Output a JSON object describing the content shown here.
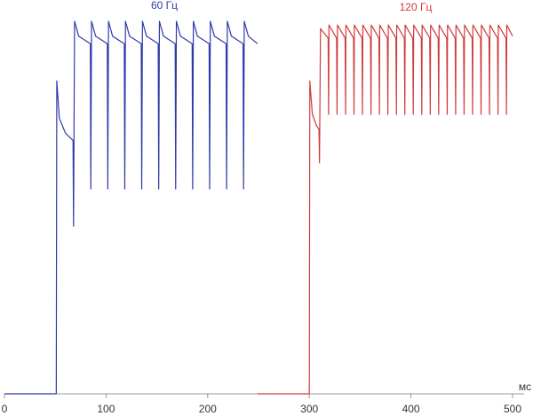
{
  "chart_data": {
    "type": "line",
    "x_label": "мс",
    "xlim": [
      0,
      500
    ],
    "xticks": [
      0,
      100,
      200,
      300,
      400,
      500
    ],
    "ylim": [
      0,
      100
    ],
    "series": [
      {
        "name": "60 Гц",
        "color": "#2f3aa8",
        "x": [
          0,
          51,
          51.5,
          54,
          60,
          67.5,
          68,
          69,
          73,
          84.5,
          85,
          85.7,
          89.7,
          101.2,
          101.7,
          102.4,
          106.4,
          117.9,
          118.4,
          119.1,
          123.1,
          134.6,
          135.1,
          135.8,
          139.8,
          151.3,
          151.8,
          152.5,
          156.5,
          168,
          168.5,
          169.2,
          173.2,
          184.7,
          185.2,
          185.9,
          189.9,
          201.4,
          201.9,
          202.6,
          206.6,
          218.1,
          218.6,
          219.3,
          223.3,
          234.8,
          235.3,
          236,
          240,
          249
        ],
        "values": [
          0,
          0,
          84,
          74,
          70,
          68,
          45,
          100,
          96,
          94,
          55,
          100,
          96,
          94,
          55,
          100,
          96,
          94,
          55,
          100,
          96,
          94,
          55,
          100,
          96,
          94,
          55,
          100,
          96,
          94,
          55,
          100,
          96,
          94,
          55,
          100,
          96,
          94,
          55,
          100,
          96,
          94,
          55,
          100,
          96,
          94,
          55,
          100,
          96,
          94
        ]
      },
      {
        "name": "120 Гц",
        "color": "#d03a3a",
        "x": [
          249,
          300,
          300.5,
          303,
          307,
          309.5,
          310,
          311,
          318.5,
          319,
          319.3,
          326.8,
          327.3,
          327.7,
          335.2,
          335.7,
          336,
          343.5,
          344,
          344.3,
          351.8,
          352.3,
          352.7,
          360.2,
          360.7,
          361,
          368.5,
          369,
          369.3,
          376.8,
          377.3,
          377.7,
          385.2,
          385.7,
          386,
          393.5,
          394,
          394.3,
          401.8,
          402.3,
          402.7,
          410.2,
          410.7,
          411,
          418.5,
          419,
          419.3,
          426.8,
          427.3,
          427.7,
          435.2,
          435.7,
          436,
          443.5,
          444,
          444.3,
          451.8,
          452.3,
          452.7,
          460.2,
          460.7,
          461,
          468.5,
          469,
          469.3,
          476.8,
          477.3,
          477.7,
          485.2,
          485.7,
          486,
          493.5,
          494,
          494.3,
          500
        ],
        "values": [
          0,
          0,
          84,
          75,
          72,
          71,
          62,
          98,
          95.5,
          75,
          99,
          95.5,
          75,
          99,
          95.5,
          75,
          99,
          95.5,
          75,
          99,
          95.5,
          75,
          99,
          95.5,
          75,
          99,
          95.5,
          75,
          99,
          95.5,
          75,
          99,
          95.5,
          75,
          99,
          95.5,
          75,
          99,
          95.5,
          75,
          99,
          95.5,
          75,
          99,
          95.5,
          75,
          99,
          95.5,
          75,
          99,
          95.5,
          75,
          99,
          95.5,
          75,
          99,
          95.5,
          75,
          99,
          95.5,
          75,
          99,
          95.5,
          75,
          99,
          95.5,
          75,
          99,
          95.5,
          75,
          99,
          95.5,
          75,
          99,
          96
        ]
      }
    ]
  }
}
